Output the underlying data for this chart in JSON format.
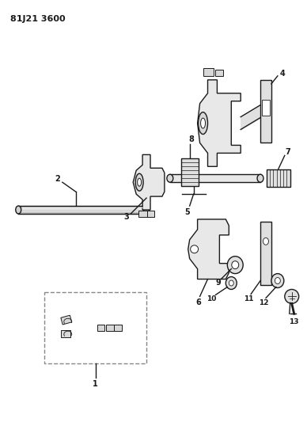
{
  "title": "81J21 3600",
  "bg": "#ffffff",
  "lc": "#1a1a1a",
  "gc": "#888888",
  "figsize": [
    3.88,
    5.33
  ],
  "dpi": 100
}
